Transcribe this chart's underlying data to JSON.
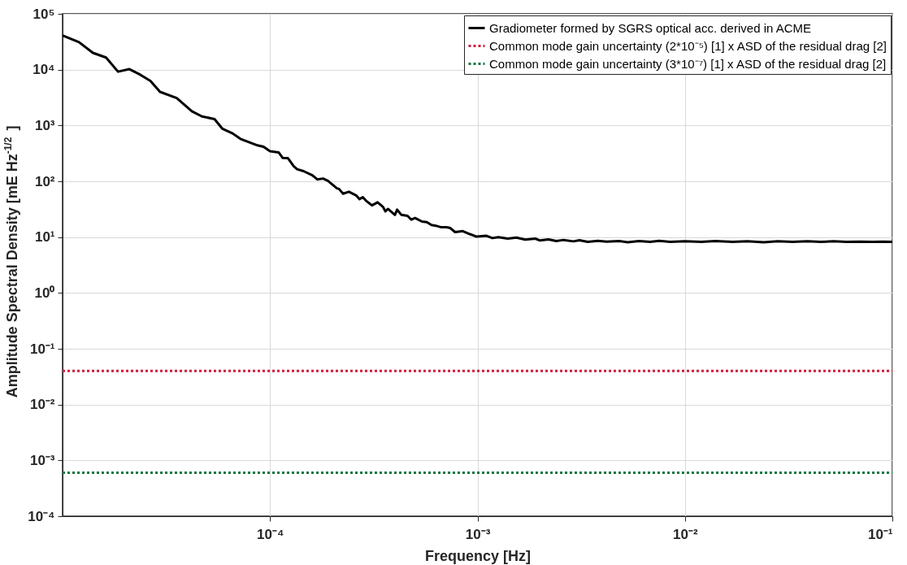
{
  "chart_data": {
    "type": "line",
    "xlabel": "Frequency [Hz]",
    "ylabel": "Amplitude Spectral Density [mE Hz$^{-1/2}$]",
    "log": "xy",
    "grid": true,
    "legend": "top right",
    "marker": "none",
    "xlim": [
      1e-05,
      0.1
    ],
    "xticks": [
      {
        "value": 0.0001,
        "label": "10⁻⁴"
      },
      {
        "value": 0.001,
        "label": "10⁻³"
      },
      {
        "value": 0.01,
        "label": "10⁻²"
      },
      {
        "value": 0.1,
        "label": "10⁻¹"
      }
    ],
    "ylim": [
      0.0001,
      100000
    ],
    "yticks": [
      {
        "value": 0.0001,
        "label": "10⁻⁴"
      },
      {
        "value": 0.001,
        "label": "10⁻³"
      },
      {
        "value": 0.01,
        "label": "10⁻²"
      },
      {
        "value": 0.1,
        "label": "10⁻¹"
      },
      {
        "value": 1,
        "label": "10⁰"
      },
      {
        "value": 10,
        "label": "10¹"
      },
      {
        "value": 100,
        "label": "10²"
      },
      {
        "value": 1000,
        "label": "10³"
      },
      {
        "value": 10000,
        "label": "10⁴"
      },
      {
        "value": 100000,
        "label": "10⁵"
      }
    ],
    "series": [
      {
        "name": "Gradiometer formed by SGRS optical acc. derived in ACME",
        "color": "#000000",
        "line_style": "solid",
        "x": [
          1e-05,
          1.2e-05,
          1.4e-05,
          1.62e-05,
          1.85e-05,
          2.1e-05,
          2.37e-05,
          2.65e-05,
          2.95e-05,
          3.55e-05,
          4.2e-05,
          4.7e-05,
          5.4e-05,
          5.9e-05,
          6.6e-05,
          7.2e-05,
          8.7e-05,
          9.3e-05,
          0.0001,
          0.00011,
          0.000115,
          0.000122,
          0.00013,
          0.000135,
          0.000145,
          0.00016,
          0.000169,
          0.00018,
          0.00019,
          0.00021,
          0.000215,
          0.000225,
          0.00024,
          0.00026,
          0.00027,
          0.00028,
          0.00029,
          0.00031,
          0.00033,
          0.00035,
          0.00036,
          0.00037,
          0.0004,
          0.00041,
          0.00043,
          0.00046,
          0.00048,
          0.0005,
          0.00054,
          0.00057,
          0.0006,
          0.00063,
          0.00067,
          0.00071,
          0.00074,
          0.00078,
          0.00085,
          0.00092,
          0.00099,
          0.0011,
          0.00118,
          0.00126,
          0.0014,
          0.00154,
          0.0017,
          0.0019,
          0.002,
          0.0022,
          0.0024,
          0.0026,
          0.0029,
          0.0031,
          0.0034,
          0.0038,
          0.0042,
          0.0048,
          0.0053,
          0.006,
          0.0068,
          0.0075,
          0.0085,
          0.01,
          0.012,
          0.014,
          0.017,
          0.02,
          0.024,
          0.028,
          0.033,
          0.039,
          0.045,
          0.052,
          0.06,
          0.07,
          0.08,
          0.09,
          0.1
        ],
        "values": [
          41000,
          31000,
          20000,
          16500,
          9200,
          10200,
          8100,
          6300,
          4000,
          3100,
          1800,
          1450,
          1300,
          870,
          720,
          575,
          440,
          415,
          345,
          330,
          263,
          260,
          187,
          165,
          152,
          128,
          108,
          112,
          102,
          75,
          73,
          60,
          65,
          56,
          48,
          52,
          45,
          37,
          42,
          35,
          29,
          32,
          25,
          31,
          25,
          24,
          20.5,
          22,
          19,
          18.5,
          16.5,
          16,
          15,
          15,
          14.5,
          12.3,
          12.8,
          11.3,
          10.2,
          10.6,
          9.6,
          10.0,
          9.4,
          9.8,
          9.0,
          9.4,
          8.7,
          9.1,
          8.5,
          8.9,
          8.4,
          8.8,
          8.2,
          8.6,
          8.3,
          8.5,
          8.1,
          8.5,
          8.2,
          8.6,
          8.2,
          8.4,
          8.2,
          8.5,
          8.2,
          8.4,
          8.1,
          8.4,
          8.2,
          8.4,
          8.2,
          8.4,
          8.2,
          8.3,
          8.2,
          8.3,
          8.2
        ]
      },
      {
        "name": "Common mode gain uncertainty (2*10⁻⁵) [1] x ASD of the residual drag [2]",
        "color": "#d01c3c",
        "line_style": "dotted",
        "x": [
          1e-05,
          0.1
        ],
        "values": [
          0.04,
          0.04
        ]
      },
      {
        "name": "Common mode gain uncertainty (3*10⁻⁷) [1] x ASD of the residual drag [2]",
        "color": "#10773f",
        "line_style": "dotted",
        "x": [
          1e-05,
          0.1
        ],
        "values": [
          0.0006,
          0.0006
        ]
      }
    ]
  }
}
